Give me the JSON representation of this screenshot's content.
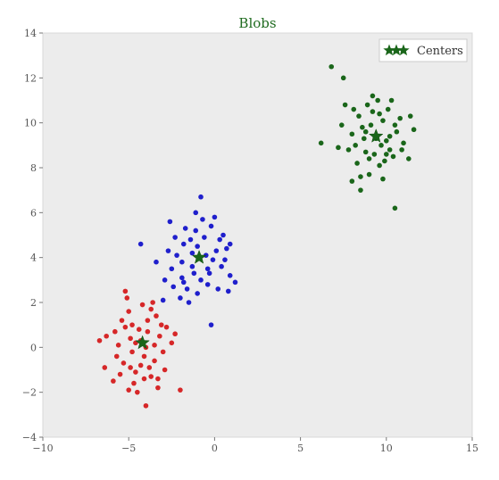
{
  "chart_data": {
    "type": "scatter",
    "title": "Blobs",
    "xlabel": "",
    "ylabel": "",
    "xlim": [
      -10,
      15
    ],
    "ylim": [
      -4,
      14
    ],
    "xticks": [
      -10,
      -5,
      0,
      5,
      10,
      15
    ],
    "yticks": [
      -4,
      -2,
      0,
      2,
      4,
      6,
      8,
      10,
      12,
      14
    ],
    "grid": false,
    "background": "#ececec",
    "legend": {
      "placement": "top-right",
      "entries": [
        "Centers"
      ]
    },
    "series": [
      {
        "color": "#d62728",
        "points": [
          [
            -4.3,
            0.3
          ],
          [
            -5.2,
            0.9
          ],
          [
            -3.5,
            -0.6
          ],
          [
            -4.8,
            -0.2
          ],
          [
            -3.9,
            1.2
          ],
          [
            -4.6,
            -1.1
          ],
          [
            -5.6,
            0.1
          ],
          [
            -3.2,
            0.5
          ],
          [
            -4.1,
            -0.4
          ],
          [
            -5.0,
            1.6
          ],
          [
            -3.7,
            -1.3
          ],
          [
            -4.4,
            0.8
          ],
          [
            -5.3,
            -0.7
          ],
          [
            -3.0,
            -0.2
          ],
          [
            -4.9,
            0.4
          ],
          [
            -4.2,
            1.9
          ],
          [
            -3.4,
            1.4
          ],
          [
            -5.8,
            0.7
          ],
          [
            -4.7,
            -1.6
          ],
          [
            -3.8,
            -0.9
          ],
          [
            -2.8,
            0.9
          ],
          [
            -5.5,
            -1.2
          ],
          [
            -4.0,
            0.0
          ],
          [
            -5.1,
            2.2
          ],
          [
            -3.6,
            2.0
          ],
          [
            -6.3,
            0.5
          ],
          [
            -4.5,
            -2.0
          ],
          [
            -3.3,
            -1.8
          ],
          [
            -2.5,
            0.2
          ],
          [
            -5.7,
            -0.4
          ],
          [
            -4.9,
            -0.9
          ],
          [
            -3.1,
            1.0
          ],
          [
            -4.3,
            -0.8
          ],
          [
            -5.4,
            1.2
          ],
          [
            -3.9,
            0.7
          ],
          [
            -4.6,
            0.2
          ],
          [
            -2.9,
            -1.0
          ],
          [
            -5.9,
            -1.5
          ],
          [
            -4.1,
            -1.4
          ],
          [
            -3.5,
            0.1
          ],
          [
            -6.7,
            0.3
          ],
          [
            -2.0,
            -1.9
          ],
          [
            -4.0,
            -2.6
          ],
          [
            -6.4,
            -0.9
          ],
          [
            -2.3,
            0.6
          ],
          [
            -5.2,
            2.5
          ],
          [
            -3.3,
            -1.4
          ],
          [
            -4.8,
            1.0
          ],
          [
            -5.0,
            -1.9
          ],
          [
            -3.7,
            1.7
          ]
        ]
      },
      {
        "color": "#1f1fcc",
        "points": [
          [
            -0.9,
            4.0
          ],
          [
            -1.8,
            4.6
          ],
          [
            -0.3,
            3.3
          ],
          [
            -1.3,
            3.6
          ],
          [
            -0.6,
            4.9
          ],
          [
            -1.9,
            3.1
          ],
          [
            0.1,
            4.3
          ],
          [
            -1.1,
            5.2
          ],
          [
            -2.2,
            4.1
          ],
          [
            -0.4,
            2.8
          ],
          [
            -1.6,
            2.6
          ],
          [
            0.4,
            3.6
          ],
          [
            -1.0,
            4.5
          ],
          [
            -2.5,
            3.5
          ],
          [
            -0.2,
            5.4
          ],
          [
            -1.4,
            4.8
          ],
          [
            0.7,
            4.4
          ],
          [
            -2.0,
            2.2
          ],
          [
            -0.8,
            3.0
          ],
          [
            -1.2,
            3.3
          ],
          [
            0.2,
            2.6
          ],
          [
            -2.7,
            4.3
          ],
          [
            -0.5,
            4.1
          ],
          [
            -1.7,
            5.3
          ],
          [
            0.9,
            3.2
          ],
          [
            -1.5,
            2.0
          ],
          [
            -2.9,
            3.0
          ],
          [
            0.5,
            5.0
          ],
          [
            -0.1,
            3.9
          ],
          [
            -2.3,
            4.9
          ],
          [
            -1.0,
            2.4
          ],
          [
            0.8,
            2.5
          ],
          [
            -1.9,
            3.8
          ],
          [
            -0.7,
            5.7
          ],
          [
            -2.4,
            2.7
          ],
          [
            0.3,
            4.8
          ],
          [
            -1.3,
            4.2
          ],
          [
            -0.4,
            3.5
          ],
          [
            -1.8,
            2.9
          ],
          [
            0.6,
            3.9
          ],
          [
            -3.4,
            3.8
          ],
          [
            -0.8,
            6.7
          ],
          [
            -4.3,
            4.6
          ],
          [
            1.2,
            2.9
          ],
          [
            -0.2,
            1.0
          ],
          [
            0.9,
            4.6
          ],
          [
            -3.0,
            2.1
          ],
          [
            -1.1,
            6.0
          ],
          [
            0.0,
            5.8
          ],
          [
            -2.6,
            5.6
          ]
        ]
      },
      {
        "color": "#1a661a",
        "points": [
          [
            9.4,
            9.3
          ],
          [
            8.6,
            9.8
          ],
          [
            10.2,
            8.8
          ],
          [
            9.0,
            8.4
          ],
          [
            9.8,
            10.1
          ],
          [
            8.2,
            9.0
          ],
          [
            10.6,
            9.6
          ],
          [
            9.2,
            10.5
          ],
          [
            8.8,
            8.7
          ],
          [
            10.0,
            9.2
          ],
          [
            9.6,
            8.1
          ],
          [
            8.4,
            10.3
          ],
          [
            10.8,
            10.2
          ],
          [
            9.1,
            9.9
          ],
          [
            8.0,
            9.5
          ],
          [
            10.4,
            8.5
          ],
          [
            9.7,
            9.0
          ],
          [
            8.9,
            10.8
          ],
          [
            10.1,
            10.6
          ],
          [
            9.3,
            8.6
          ],
          [
            7.8,
            8.8
          ],
          [
            11.0,
            9.1
          ],
          [
            8.7,
            9.3
          ],
          [
            9.9,
            8.3
          ],
          [
            10.5,
            9.9
          ],
          [
            8.3,
            8.2
          ],
          [
            9.5,
            11.0
          ],
          [
            10.9,
            8.8
          ],
          [
            8.1,
            10.6
          ],
          [
            9.0,
            7.7
          ],
          [
            7.4,
            9.9
          ],
          [
            11.3,
            8.4
          ],
          [
            9.2,
            11.2
          ],
          [
            8.5,
            7.6
          ],
          [
            10.3,
            11.0
          ],
          [
            7.6,
            10.8
          ],
          [
            11.6,
            9.7
          ],
          [
            9.8,
            7.5
          ],
          [
            8.0,
            7.4
          ],
          [
            10.0,
            8.6
          ],
          [
            6.8,
            12.5
          ],
          [
            6.2,
            9.1
          ],
          [
            10.5,
            6.2
          ],
          [
            7.5,
            12.0
          ],
          [
            8.5,
            7.0
          ],
          [
            11.4,
            10.3
          ],
          [
            7.2,
            8.9
          ],
          [
            9.6,
            10.4
          ],
          [
            8.8,
            9.6
          ],
          [
            10.2,
            9.4
          ]
        ]
      }
    ],
    "centers": {
      "name": "Centers",
      "color": "#1a661a",
      "points": [
        [
          -4.2,
          0.2
        ],
        [
          -0.9,
          4.0
        ],
        [
          9.4,
          9.4
        ]
      ]
    }
  }
}
